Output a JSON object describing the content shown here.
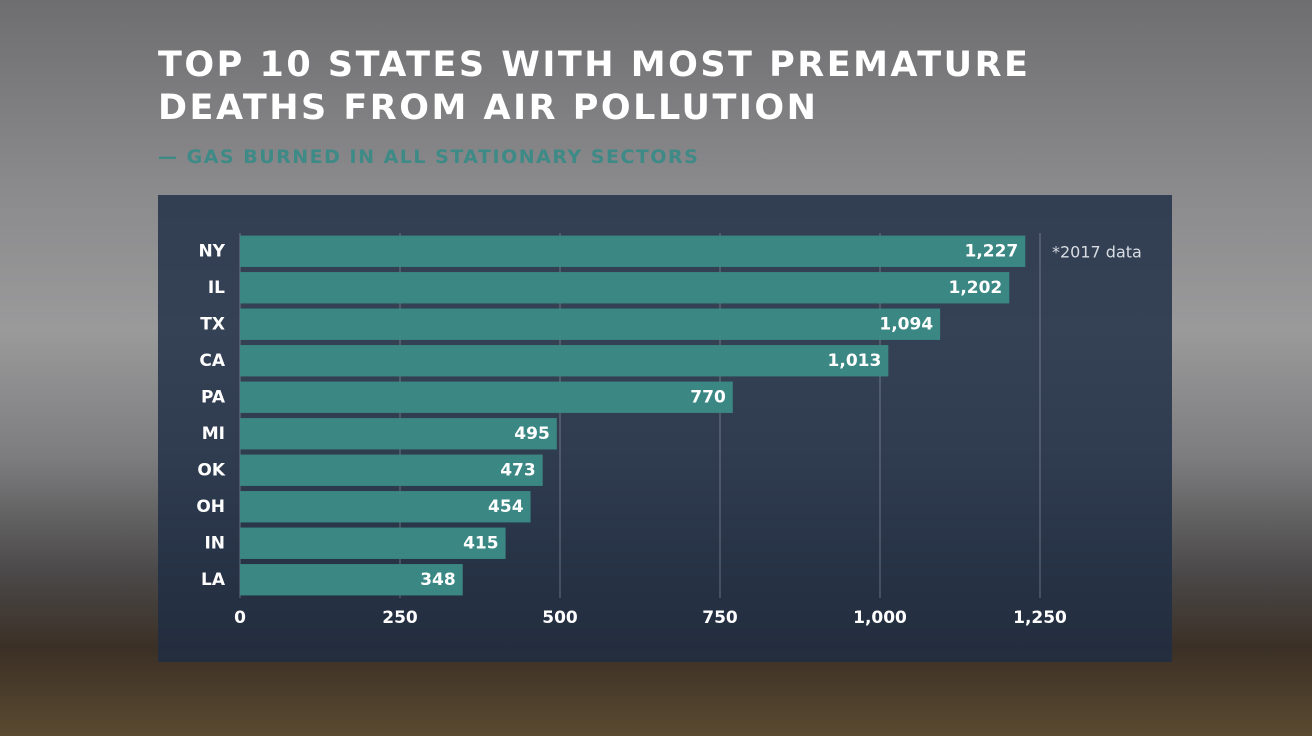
{
  "chart_data": {
    "type": "bar",
    "orientation": "horizontal",
    "title": "TOP 10 STATES WITH MOST PREMATURE DEATHS FROM AIR POLLUTION",
    "subtitle": "— GAS BURNED IN ALL STATIONARY SECTORS",
    "annotation": "*2017 data",
    "categories": [
      "NY",
      "IL",
      "TX",
      "CA",
      "PA",
      "MI",
      "OK",
      "OH",
      "IN",
      "LA"
    ],
    "values": [
      1227,
      1202,
      1094,
      1013,
      770,
      495,
      473,
      454,
      415,
      348
    ],
    "value_labels": [
      "1,227",
      "1,202",
      "1,094",
      "1,013",
      "770",
      "495",
      "473",
      "454",
      "415",
      "348"
    ],
    "color": "#3a8784",
    "xlim": [
      0,
      1250
    ],
    "xticks": [
      0,
      250,
      500,
      750,
      {
        "value": 1000,
        "label": "1,000"
      },
      {
        "value": 1250,
        "label": "1,250"
      }
    ],
    "grid": true
  }
}
